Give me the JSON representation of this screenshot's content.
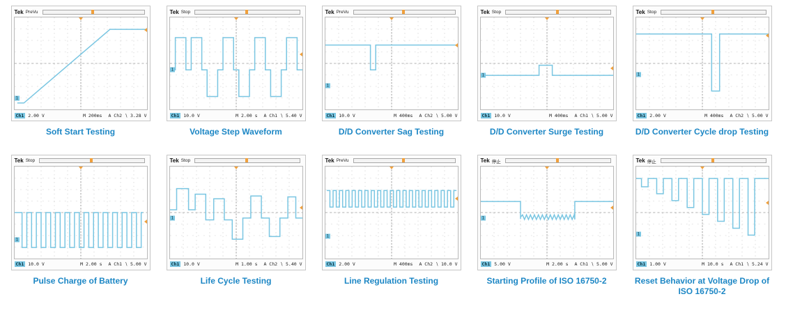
{
  "colors": {
    "trace": "#7ac6e2",
    "caption": "#1d87c5",
    "accent_orange": "#f0a03c",
    "channel_badge": "#7ac6e2",
    "grid": "#cccccc",
    "centerline": "#9b9b9b",
    "scope_border": "#c6c6c6"
  },
  "chart_data": [
    {
      "id": "soft-start-testing",
      "type": "line",
      "title": "Soft Start Testing",
      "header": {
        "brand": "Tek",
        "mode": "PreVu"
      },
      "status": {
        "ch": "Ch1",
        "volts": "2.00 V",
        "time": "M 200ms",
        "trigger": "A Ch2 ∖ 3.28 V"
      },
      "channel_marker_y": 88,
      "trigger_marker_y": 14,
      "x_range": [
        0,
        100
      ],
      "y_range": [
        0,
        100
      ],
      "segments": [
        {
          "kind": "points",
          "pts": [
            [
              2,
              93
            ],
            [
              7,
              93
            ],
            [
              72,
              13
            ],
            [
              100,
              13
            ]
          ]
        }
      ]
    },
    {
      "id": "voltage-step-waveform",
      "type": "line",
      "title": "Voltage Step Waveform",
      "header": {
        "brand": "Tek",
        "mode": "Stop"
      },
      "status": {
        "ch": "Ch1",
        "volts": "10.0 V",
        "time": "M 2.00 s",
        "trigger": "A Ch1 ∖ 5.40 V"
      },
      "channel_marker_y": 57,
      "trigger_marker_y": 40,
      "x_range": [
        0,
        100
      ],
      "y_range": [
        0,
        100
      ],
      "segments": [
        {
          "kind": "points",
          "pts": [
            [
              0,
              57
            ],
            [
              4,
              57
            ],
            [
              4,
              22
            ],
            [
              12,
              22
            ],
            [
              12,
              57
            ],
            [
              16,
              57
            ],
            [
              16,
              22
            ],
            [
              24,
              22
            ],
            [
              24,
              57
            ],
            [
              28,
              57
            ],
            [
              28,
              86
            ],
            [
              36,
              86
            ],
            [
              36,
              57
            ],
            [
              40,
              57
            ],
            [
              40,
              22
            ],
            [
              48,
              22
            ],
            [
              48,
              57
            ],
            [
              52,
              57
            ],
            [
              52,
              86
            ],
            [
              60,
              86
            ],
            [
              60,
              57
            ],
            [
              64,
              57
            ],
            [
              64,
              22
            ],
            [
              72,
              22
            ],
            [
              72,
              57
            ],
            [
              76,
              57
            ],
            [
              76,
              86
            ],
            [
              84,
              86
            ],
            [
              84,
              57
            ],
            [
              88,
              57
            ],
            [
              88,
              22
            ],
            [
              96,
              22
            ],
            [
              96,
              57
            ],
            [
              100,
              57
            ]
          ]
        }
      ]
    },
    {
      "id": "dd-converter-sag-testing",
      "type": "line",
      "title": "D/D Converter Sag Testing",
      "header": {
        "brand": "Tek",
        "mode": "PreVu"
      },
      "status": {
        "ch": "Ch1",
        "volts": "10.0 V",
        "time": "M 400ms",
        "trigger": "A Ch2 ∖ 5.00 V"
      },
      "channel_marker_y": 74,
      "trigger_marker_y": 30,
      "x_range": [
        0,
        100
      ],
      "y_range": [
        0,
        100
      ],
      "segments": [
        {
          "kind": "points",
          "pts": [
            [
              0,
              30
            ],
            [
              34,
              30
            ],
            [
              34,
              57
            ],
            [
              38,
              57
            ],
            [
              38,
              30
            ],
            [
              100,
              30
            ]
          ]
        }
      ]
    },
    {
      "id": "dd-converter-surge-testing",
      "type": "line",
      "title": "D/D Converter Surge Testing",
      "header": {
        "brand": "Tek",
        "mode": "Stop"
      },
      "status": {
        "ch": "Ch1",
        "volts": "10.0 V",
        "time": "M 400ms",
        "trigger": "A Ch1 ∖ 5.00 V"
      },
      "channel_marker_y": 63,
      "trigger_marker_y": 55,
      "x_range": [
        0,
        100
      ],
      "y_range": [
        0,
        100
      ],
      "segments": [
        {
          "kind": "points",
          "pts": [
            [
              0,
              63
            ],
            [
              44,
              63
            ],
            [
              44,
              52
            ],
            [
              54,
              52
            ],
            [
              54,
              63
            ],
            [
              100,
              63
            ]
          ]
        }
      ]
    },
    {
      "id": "dd-converter-cycle-drop-testing",
      "type": "line",
      "title": "D/D Converter Cycle drop Testing",
      "header": {
        "brand": "Tek",
        "mode": "Stop"
      },
      "status": {
        "ch": "Ch1",
        "volts": "2.00 V",
        "time": "M 400ms",
        "trigger": "A Ch2 ∖ 5.00 V"
      },
      "channel_marker_y": 62,
      "trigger_marker_y": 20,
      "x_range": [
        0,
        100
      ],
      "y_range": [
        0,
        100
      ],
      "segments": [
        {
          "kind": "points",
          "pts": [
            [
              0,
              18
            ],
            [
              57,
              18
            ],
            [
              57,
              80
            ],
            [
              63,
              80
            ],
            [
              63,
              18
            ],
            [
              100,
              18
            ]
          ]
        }
      ]
    },
    {
      "id": "pulse-charge-of-battery",
      "type": "line",
      "title": "Pulse Charge of Battery",
      "header": {
        "brand": "Tek",
        "mode": "Stop"
      },
      "status": {
        "ch": "Ch1",
        "volts": "10.0 V",
        "time": "M 2.00 s",
        "trigger": "A Ch1 ∖ 5.00 V"
      },
      "channel_marker_y": 80,
      "trigger_marker_y": 60,
      "x_range": [
        0,
        100
      ],
      "y_range": [
        0,
        100
      ],
      "segments": [
        {
          "kind": "points",
          "pts": [
            [
              0,
              50
            ],
            [
              2,
              50
            ]
          ]
        },
        {
          "kind": "square",
          "x0": 2,
          "x1": 97,
          "period": 7.2,
          "top": 50,
          "bottom": 88,
          "start": "top"
        }
      ]
    },
    {
      "id": "life-cycle-testing",
      "type": "line",
      "title": "Life Cycle Testing",
      "header": {
        "brand": "Tek",
        "mode": "Stop"
      },
      "status": {
        "ch": "Ch1",
        "volts": "10.0 V",
        "time": "M 1.00 s",
        "trigger": "A Ch2 ∖ 5.40 V"
      },
      "channel_marker_y": 56,
      "trigger_marker_y": 45,
      "x_range": [
        0,
        100
      ],
      "y_range": [
        0,
        100
      ],
      "segments": [
        {
          "kind": "points",
          "pts": [
            [
              0,
              47
            ],
            [
              5,
              47
            ],
            [
              5,
              24
            ],
            [
              14,
              24
            ],
            [
              14,
              47
            ],
            [
              19,
              47
            ],
            [
              19,
              30
            ],
            [
              27,
              30
            ],
            [
              27,
              58
            ],
            [
              33,
              58
            ],
            [
              33,
              35
            ],
            [
              41,
              35
            ],
            [
              41,
              58
            ],
            [
              47,
              58
            ],
            [
              47,
              79
            ],
            [
              55,
              79
            ],
            [
              55,
              56
            ],
            [
              61,
              56
            ],
            [
              61,
              32
            ],
            [
              69,
              32
            ],
            [
              69,
              56
            ],
            [
              75,
              56
            ],
            [
              75,
              76
            ],
            [
              83,
              76
            ],
            [
              83,
              56
            ],
            [
              89,
              56
            ],
            [
              89,
              33
            ],
            [
              95,
              33
            ],
            [
              95,
              56
            ],
            [
              100,
              56
            ]
          ]
        }
      ]
    },
    {
      "id": "line-regulation-testing",
      "type": "line",
      "title": "Line Regulation Testing",
      "header": {
        "brand": "Tek",
        "mode": "PreVu"
      },
      "status": {
        "ch": "Ch1",
        "volts": "2.00 V",
        "time": "M 400ms",
        "trigger": "A Ch2 ∖ 10.0 V"
      },
      "channel_marker_y": 76,
      "trigger_marker_y": 35,
      "x_range": [
        0,
        100
      ],
      "y_range": [
        0,
        100
      ],
      "segments": [
        {
          "kind": "square",
          "x0": 1,
          "x1": 99,
          "period": 4.8,
          "top": 26,
          "bottom": 44,
          "start": "top"
        }
      ]
    },
    {
      "id": "starting-profile-iso-16750-2",
      "type": "line",
      "title": "Starting Profile of ISO 16750-2",
      "header": {
        "brand": "Tek",
        "mode": "停止"
      },
      "status": {
        "ch": "Ch1",
        "volts": "5.00 V",
        "time": "M 2.00 s",
        "trigger": "A Ch1 ∖ 5.00 V"
      },
      "channel_marker_y": 56,
      "trigger_marker_y": 45,
      "x_range": [
        0,
        100
      ],
      "y_range": [
        0,
        100
      ],
      "segments": [
        {
          "kind": "points",
          "pts": [
            [
              0,
              38
            ],
            [
              30,
              38
            ],
            [
              30,
              57
            ]
          ]
        },
        {
          "kind": "zigzag",
          "x0": 30,
          "x1": 71,
          "y": 55,
          "amp": 2.5,
          "period": 3
        },
        {
          "kind": "points",
          "pts": [
            [
              71,
              38
            ],
            [
              100,
              38
            ]
          ]
        }
      ]
    },
    {
      "id": "reset-behavior-iso-16750-2",
      "type": "line",
      "title": "Reset Behavior at Voltage Drop of ISO 16750-2",
      "header": {
        "brand": "Tek",
        "mode": "停止"
      },
      "status": {
        "ch": "Ch1",
        "volts": "1.00 V",
        "time": "M 10.0 s",
        "trigger": "A Ch1 ∖ 5.24 V"
      },
      "channel_marker_y": 74,
      "trigger_marker_y": 40,
      "x_range": [
        0,
        100
      ],
      "y_range": [
        0,
        100
      ],
      "segments": [
        {
          "kind": "comb",
          "x0": 4,
          "pitch": 11.5,
          "width": 5,
          "count": 8,
          "top": 13,
          "depth0": 22,
          "ddepth": 7.5
        }
      ]
    }
  ]
}
